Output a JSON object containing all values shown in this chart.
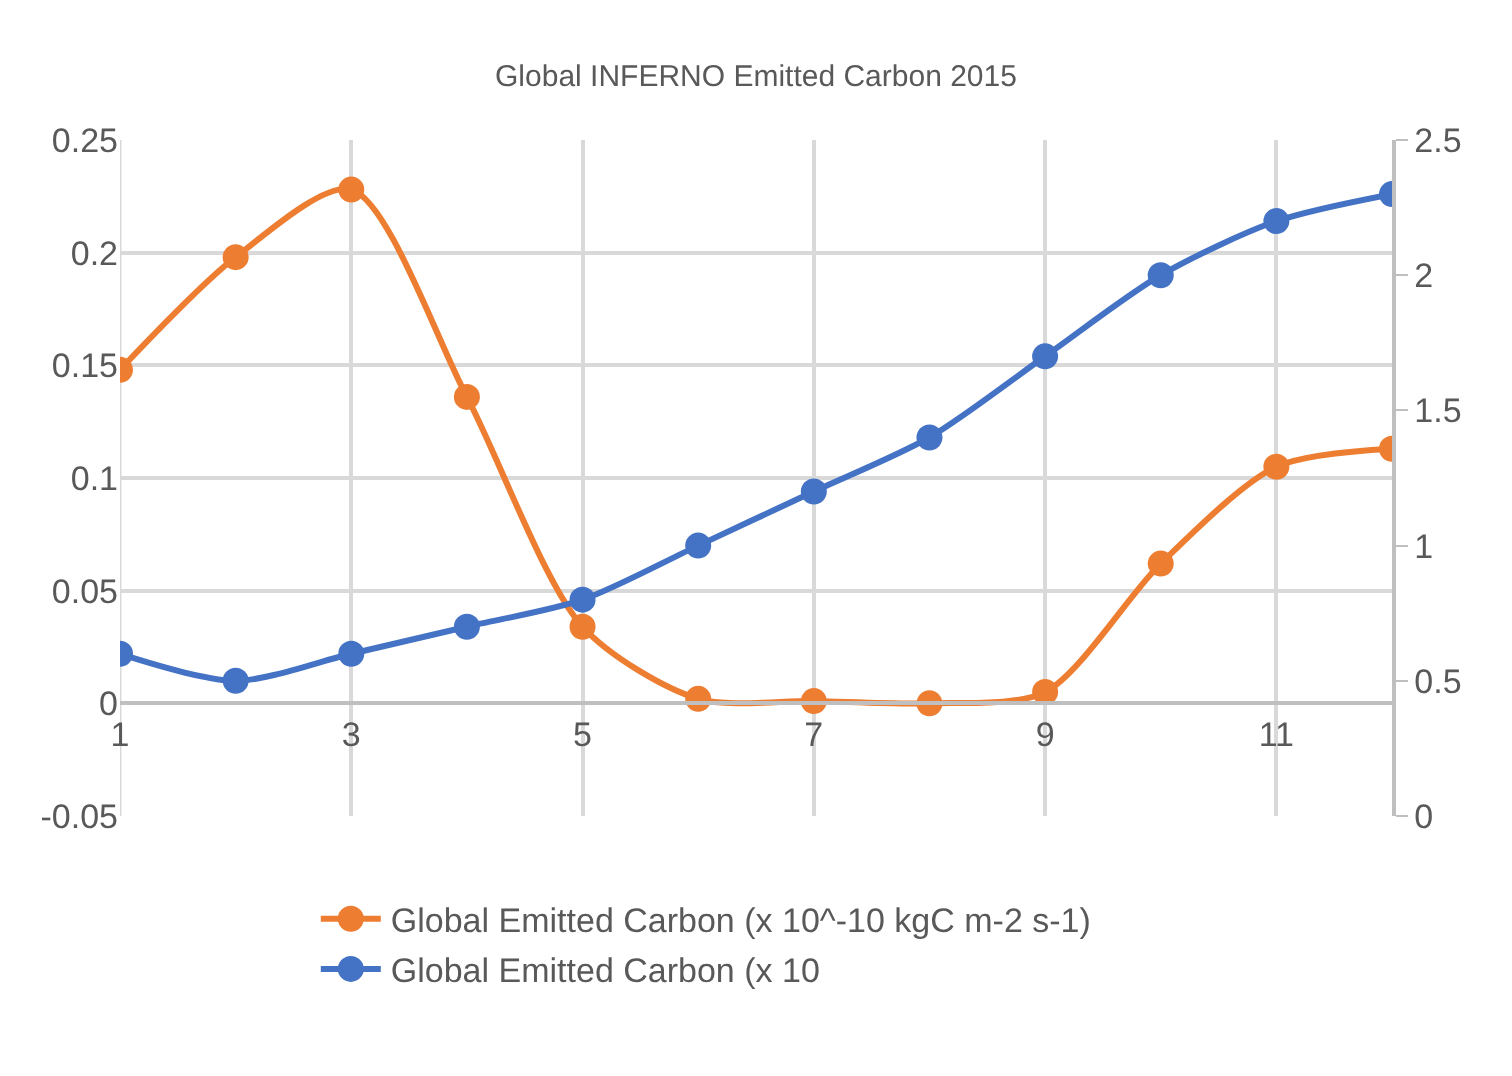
{
  "chart_data": {
    "type": "line",
    "title": "Global INFERNO Emitted Carbon 2015",
    "x": [
      1,
      2,
      3,
      4,
      5,
      6,
      7,
      8,
      9,
      10,
      11,
      12
    ],
    "series": [
      {
        "name": "Global Emitted Carbon (x 10^-10 kgC m-2 s-1)",
        "color": "#ed7d31",
        "values": [
          0.148,
          0.198,
          0.228,
          0.136,
          0.034,
          0.002,
          0.001,
          0.0,
          0.005,
          0.062,
          0.105,
          0.113
        ]
      },
      {
        "name": "Global Emitted Carbon (x 10",
        "color": "#4472c4",
        "axis": "y2",
        "values": [
          0.6,
          0.5,
          0.6,
          0.7,
          0.8,
          1.0,
          1.2,
          1.4,
          1.7,
          2.0,
          2.2,
          2.3
        ]
      }
    ],
    "xlim": [
      1,
      12
    ],
    "xticks": [
      1,
      3,
      5,
      7,
      9,
      11
    ],
    "ylim": [
      -0.05,
      0.25
    ],
    "yticks": [
      -0.05,
      0,
      0.05,
      0.1,
      0.15,
      0.2,
      0.25
    ],
    "y2lim": [
      0,
      2.5
    ],
    "y2ticks": [
      0,
      0.5,
      1,
      1.5,
      2,
      2.5
    ],
    "grid": true,
    "legend": "bottom",
    "marker": "circle",
    "line_style": "solid"
  }
}
